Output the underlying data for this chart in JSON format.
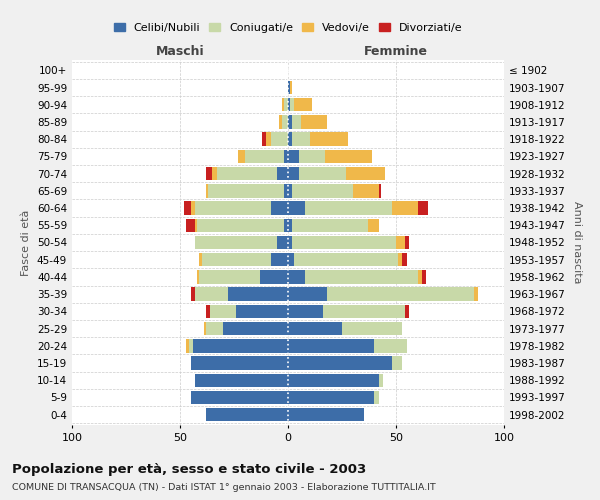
{
  "age_groups": [
    "0-4",
    "5-9",
    "10-14",
    "15-19",
    "20-24",
    "25-29",
    "30-34",
    "35-39",
    "40-44",
    "45-49",
    "50-54",
    "55-59",
    "60-64",
    "65-69",
    "70-74",
    "75-79",
    "80-84",
    "85-89",
    "90-94",
    "95-99",
    "100+"
  ],
  "birth_years": [
    "1998-2002",
    "1993-1997",
    "1988-1992",
    "1983-1987",
    "1978-1982",
    "1973-1977",
    "1968-1972",
    "1963-1967",
    "1958-1962",
    "1953-1957",
    "1948-1952",
    "1943-1947",
    "1938-1942",
    "1933-1937",
    "1928-1932",
    "1923-1927",
    "1918-1922",
    "1913-1917",
    "1908-1912",
    "1903-1907",
    "≤ 1902"
  ],
  "males": {
    "celibi": [
      38,
      45,
      43,
      45,
      44,
      30,
      24,
      28,
      13,
      8,
      5,
      2,
      8,
      2,
      5,
      2,
      0,
      0,
      0,
      0,
      0
    ],
    "coniugati": [
      0,
      0,
      0,
      0,
      2,
      8,
      12,
      15,
      28,
      32,
      38,
      40,
      35,
      35,
      28,
      18,
      8,
      3,
      2,
      0,
      0
    ],
    "vedovi": [
      0,
      0,
      0,
      0,
      1,
      1,
      0,
      0,
      1,
      1,
      0,
      1,
      2,
      1,
      2,
      3,
      2,
      1,
      1,
      0,
      0
    ],
    "divorziati": [
      0,
      0,
      0,
      0,
      0,
      0,
      2,
      2,
      0,
      0,
      0,
      4,
      3,
      0,
      3,
      0,
      2,
      0,
      0,
      0,
      0
    ]
  },
  "females": {
    "nubili": [
      35,
      40,
      42,
      48,
      40,
      25,
      16,
      18,
      8,
      3,
      2,
      2,
      8,
      2,
      5,
      5,
      2,
      2,
      1,
      1,
      0
    ],
    "coniugate": [
      0,
      2,
      2,
      5,
      15,
      28,
      38,
      68,
      52,
      48,
      48,
      35,
      40,
      28,
      22,
      12,
      8,
      4,
      2,
      0,
      0
    ],
    "vedove": [
      0,
      0,
      0,
      0,
      0,
      0,
      0,
      2,
      2,
      2,
      4,
      5,
      12,
      12,
      18,
      22,
      18,
      12,
      8,
      1,
      0
    ],
    "divorziate": [
      0,
      0,
      0,
      0,
      0,
      0,
      2,
      0,
      2,
      2,
      2,
      0,
      5,
      1,
      0,
      0,
      0,
      0,
      0,
      0,
      0
    ]
  },
  "colors": {
    "celibi": "#3d6da8",
    "coniugati": "#c8d9a8",
    "vedovi": "#f0b84a",
    "divorziati": "#c82020"
  },
  "xlim": 100,
  "title": "Popolazione per età, sesso e stato civile - 2003",
  "subtitle": "COMUNE DI TRANSACQUA (TN) - Dati ISTAT 1° gennaio 2003 - Elaborazione TUTTITALIA.IT",
  "ylabel": "Fasce di età",
  "right_ylabel": "Anni di nascita",
  "maschi_label": "Maschi",
  "femmine_label": "Femmine",
  "legend_labels": [
    "Celibi/Nubili",
    "Coniugati/e",
    "Vedovi/e",
    "Divorziati/e"
  ],
  "bg_color": "#f0f0f0",
  "plot_bg_color": "#ffffff"
}
